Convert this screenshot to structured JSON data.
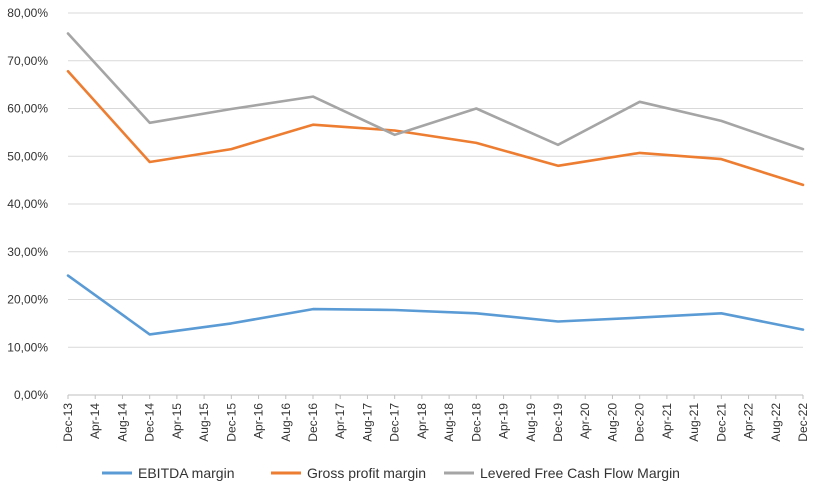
{
  "chart_data": {
    "type": "line",
    "title": "",
    "xlabel": "",
    "ylabel": "",
    "ylim": [
      0,
      80
    ],
    "y_ticks": [
      "0,00%",
      "10,00%",
      "20,00%",
      "30,00%",
      "40,00%",
      "50,00%",
      "60,00%",
      "70,00%",
      "80,00%"
    ],
    "y_tick_values": [
      0,
      10,
      20,
      30,
      40,
      50,
      60,
      70,
      80
    ],
    "grid": true,
    "legend_position": "bottom",
    "x_ticks": [
      "Dec-13",
      "Apr-14",
      "Aug-14",
      "Dec-14",
      "Apr-15",
      "Aug-15",
      "Dec-15",
      "Apr-16",
      "Aug-16",
      "Dec-16",
      "Apr-17",
      "Aug-17",
      "Dec-17",
      "Apr-18",
      "Aug-18",
      "Dec-18",
      "Apr-19",
      "Aug-19",
      "Dec-19",
      "Apr-20",
      "Aug-20",
      "Dec-20",
      "Apr-21",
      "Aug-21",
      "Dec-21",
      "Apr-22",
      "Aug-22",
      "Dec-22"
    ],
    "x": [
      "Dec-13",
      "Dec-14",
      "Dec-15",
      "Dec-16",
      "Dec-17",
      "Dec-18",
      "Dec-19",
      "Dec-20",
      "Dec-21",
      "Dec-22"
    ],
    "series": [
      {
        "name": "EBITDA margin",
        "color": "#5b9bd5",
        "values": [
          25.0,
          12.7,
          15.0,
          18.0,
          17.8,
          17.1,
          15.4,
          16.2,
          17.1,
          13.7
        ]
      },
      {
        "name": "Gross profit margin",
        "color": "#ed7d31",
        "values": [
          67.8,
          48.8,
          51.5,
          56.6,
          55.4,
          52.8,
          48.0,
          50.7,
          49.4,
          44.0
        ]
      },
      {
        "name": "Levered Free Cash Flow Margin",
        "color": "#a5a5a5",
        "values": [
          75.7,
          57.0,
          59.9,
          62.5,
          54.5,
          60.0,
          52.4,
          61.4,
          57.4,
          51.5
        ]
      }
    ]
  }
}
